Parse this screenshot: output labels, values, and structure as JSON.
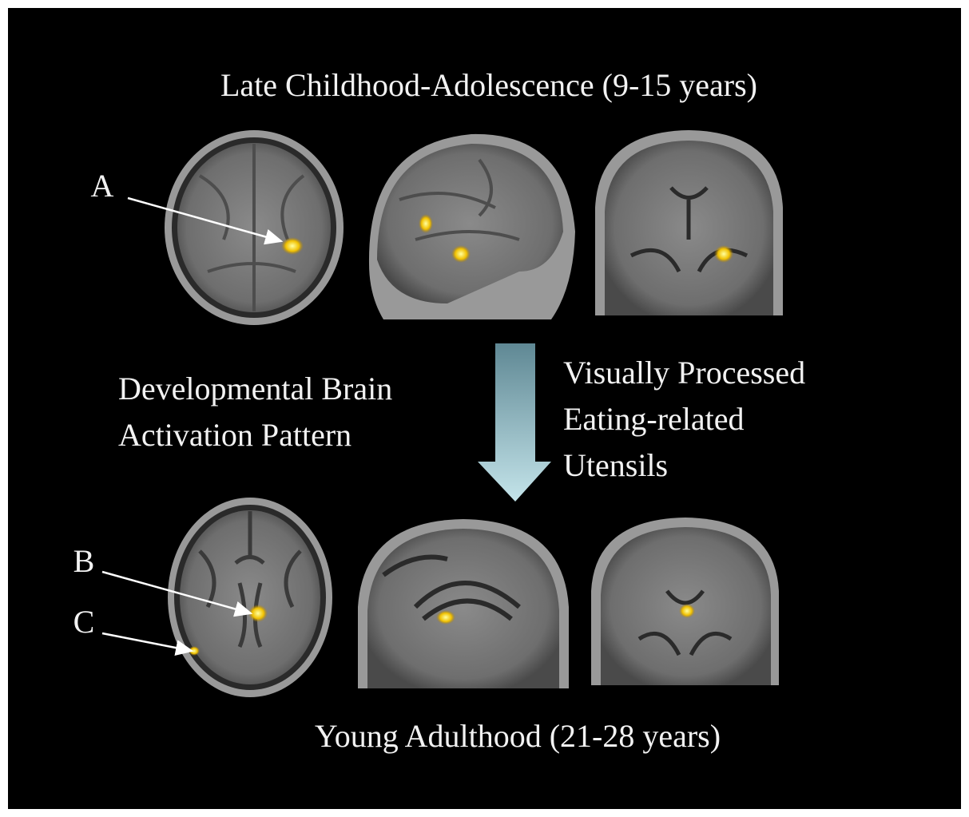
{
  "header": {
    "title": "Late Childhood-Adolescence (9-15 years)"
  },
  "footer": {
    "title": "Young Adulthood (21-28 years)"
  },
  "markers": [
    "A",
    "B",
    "C"
  ],
  "left_text": [
    "Developmental Brain",
    "Activation Pattern"
  ],
  "right_text": [
    "Visually Processed",
    "Eating-related",
    "Utensils"
  ]
}
